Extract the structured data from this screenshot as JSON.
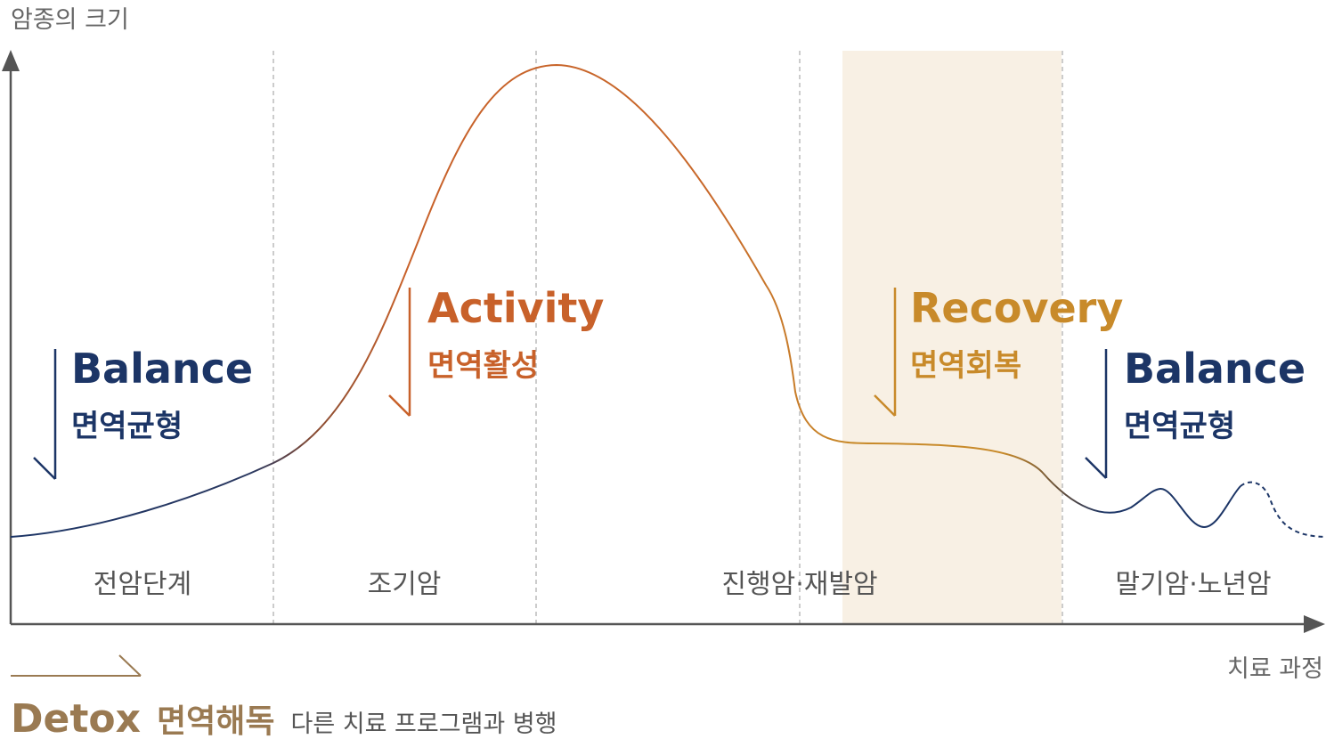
{
  "axes": {
    "y_label": "암종의 크기",
    "x_label": "치료 과정"
  },
  "phases": [
    {
      "label": "전암단계"
    },
    {
      "label": "조기암"
    },
    {
      "label": "진행암·재발암"
    },
    {
      "label": "말기암·노년암"
    }
  ],
  "tags": {
    "balance_left": {
      "en": "Balance",
      "ko": "면역균형"
    },
    "activity": {
      "en": "Activity",
      "ko": "면역활성"
    },
    "recovery": {
      "en": "Recovery",
      "ko": "면역회복"
    },
    "balance_right": {
      "en": "Balance",
      "ko": "면역균형"
    }
  },
  "detox": {
    "en": "Detox",
    "ko": "면역해독",
    "note": "다른 치료 프로그램과 병행"
  },
  "colors": {
    "navy": "#1c3566",
    "orange": "#c8612a",
    "gold": "#c88a2a",
    "brown": "#9a7a52",
    "highlight": "#f8f0e4",
    "axis": "#555555",
    "grid": "#aaaaaa"
  }
}
